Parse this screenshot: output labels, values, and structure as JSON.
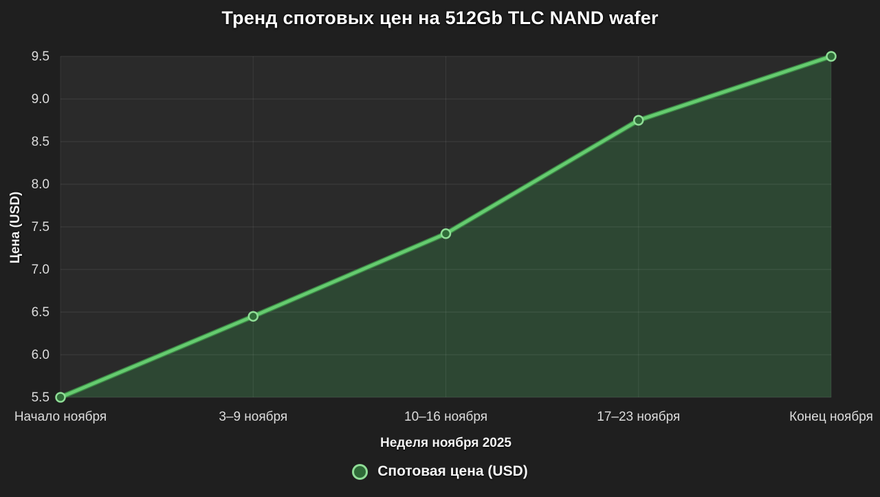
{
  "title": "Тренд спотовых цен на 512Gb TLC NAND wafer",
  "chart_data": {
    "type": "area",
    "title": "Тренд спотовых цен на 512Gb TLC NAND wafer",
    "categories": [
      "Начало ноября",
      "3–9 ноября",
      "10–16 ноября",
      "17–23 ноября",
      "Конец ноября"
    ],
    "series": [
      {
        "name": "Спотовая цена (USD)",
        "values": [
          5.5,
          6.45,
          7.42,
          8.75,
          9.5
        ]
      }
    ],
    "xlabel": "Неделя ноября 2025",
    "ylabel": "Цена (USD)",
    "ylim": [
      5.5,
      9.5
    ],
    "ytick_step": 0.5,
    "ytick_labels": [
      "5.5",
      "6.0",
      "6.5",
      "7.0",
      "7.5",
      "8.0",
      "8.5",
      "9.0",
      "9.5"
    ],
    "grid": true,
    "marker": "circle",
    "legend_position": "bottom"
  },
  "legend": {
    "label": "Спотовая цена (USD)"
  },
  "colors": {
    "background": "#1f1f1f",
    "plot_background": "#2a2a2a",
    "gridline": "rgba(255,255,255,0.08)",
    "line": "#66cc70",
    "line_shadow": "#3c8a46",
    "area_fill": "#2d4733",
    "marker_fill": "#2f6b38",
    "marker_stroke": "#8fdd96",
    "tick_text": "#dcdcdc",
    "title_text": "#ffffff"
  }
}
